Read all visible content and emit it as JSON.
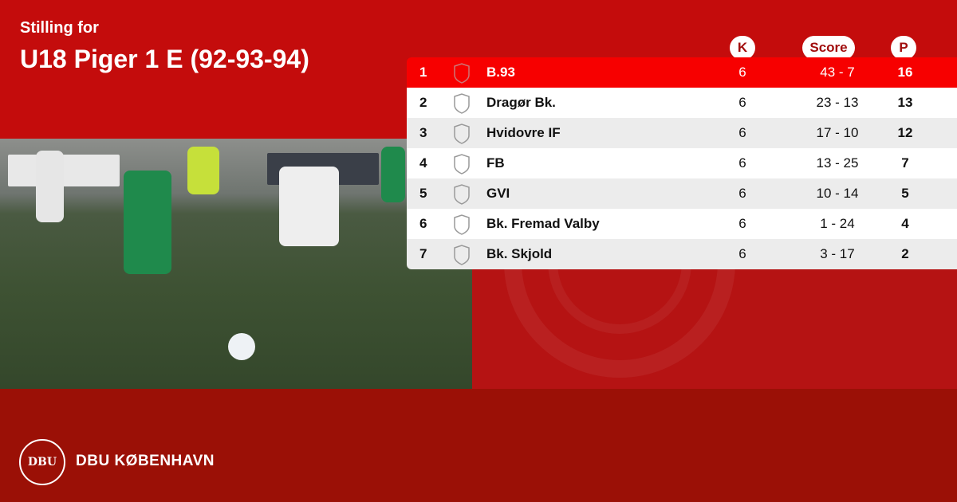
{
  "header": {
    "subtitle": "Stilling for",
    "title": "U18 Piger 1 E (92-93-94)"
  },
  "columns": {
    "k": "K",
    "score": "Score",
    "p": "P"
  },
  "rows": [
    {
      "pos": "1",
      "team": "B.93",
      "k": "6",
      "score": "43 - 7",
      "p": "16",
      "highlight": true
    },
    {
      "pos": "2",
      "team": "Dragør Bk.",
      "k": "6",
      "score": "23 - 13",
      "p": "13"
    },
    {
      "pos": "3",
      "team": "Hvidovre IF",
      "k": "6",
      "score": "17 - 10",
      "p": "12"
    },
    {
      "pos": "4",
      "team": "FB",
      "k": "6",
      "score": "13 - 25",
      "p": "7"
    },
    {
      "pos": "5",
      "team": "GVI",
      "k": "6",
      "score": "10 - 14",
      "p": "5"
    },
    {
      "pos": "6",
      "team": "Bk. Fremad Valby",
      "k": "6",
      "score": "1 - 24",
      "p": "4"
    },
    {
      "pos": "7",
      "team": "Bk. Skjold",
      "k": "6",
      "score": "3 - 17",
      "p": "2"
    }
  ],
  "footer": {
    "logo_text": "DBU",
    "brand": "DBU KØBENHAVN"
  },
  "colors": {
    "primary": "#c40c0c",
    "highlight": "#f70000",
    "footer": "#9b1006"
  }
}
